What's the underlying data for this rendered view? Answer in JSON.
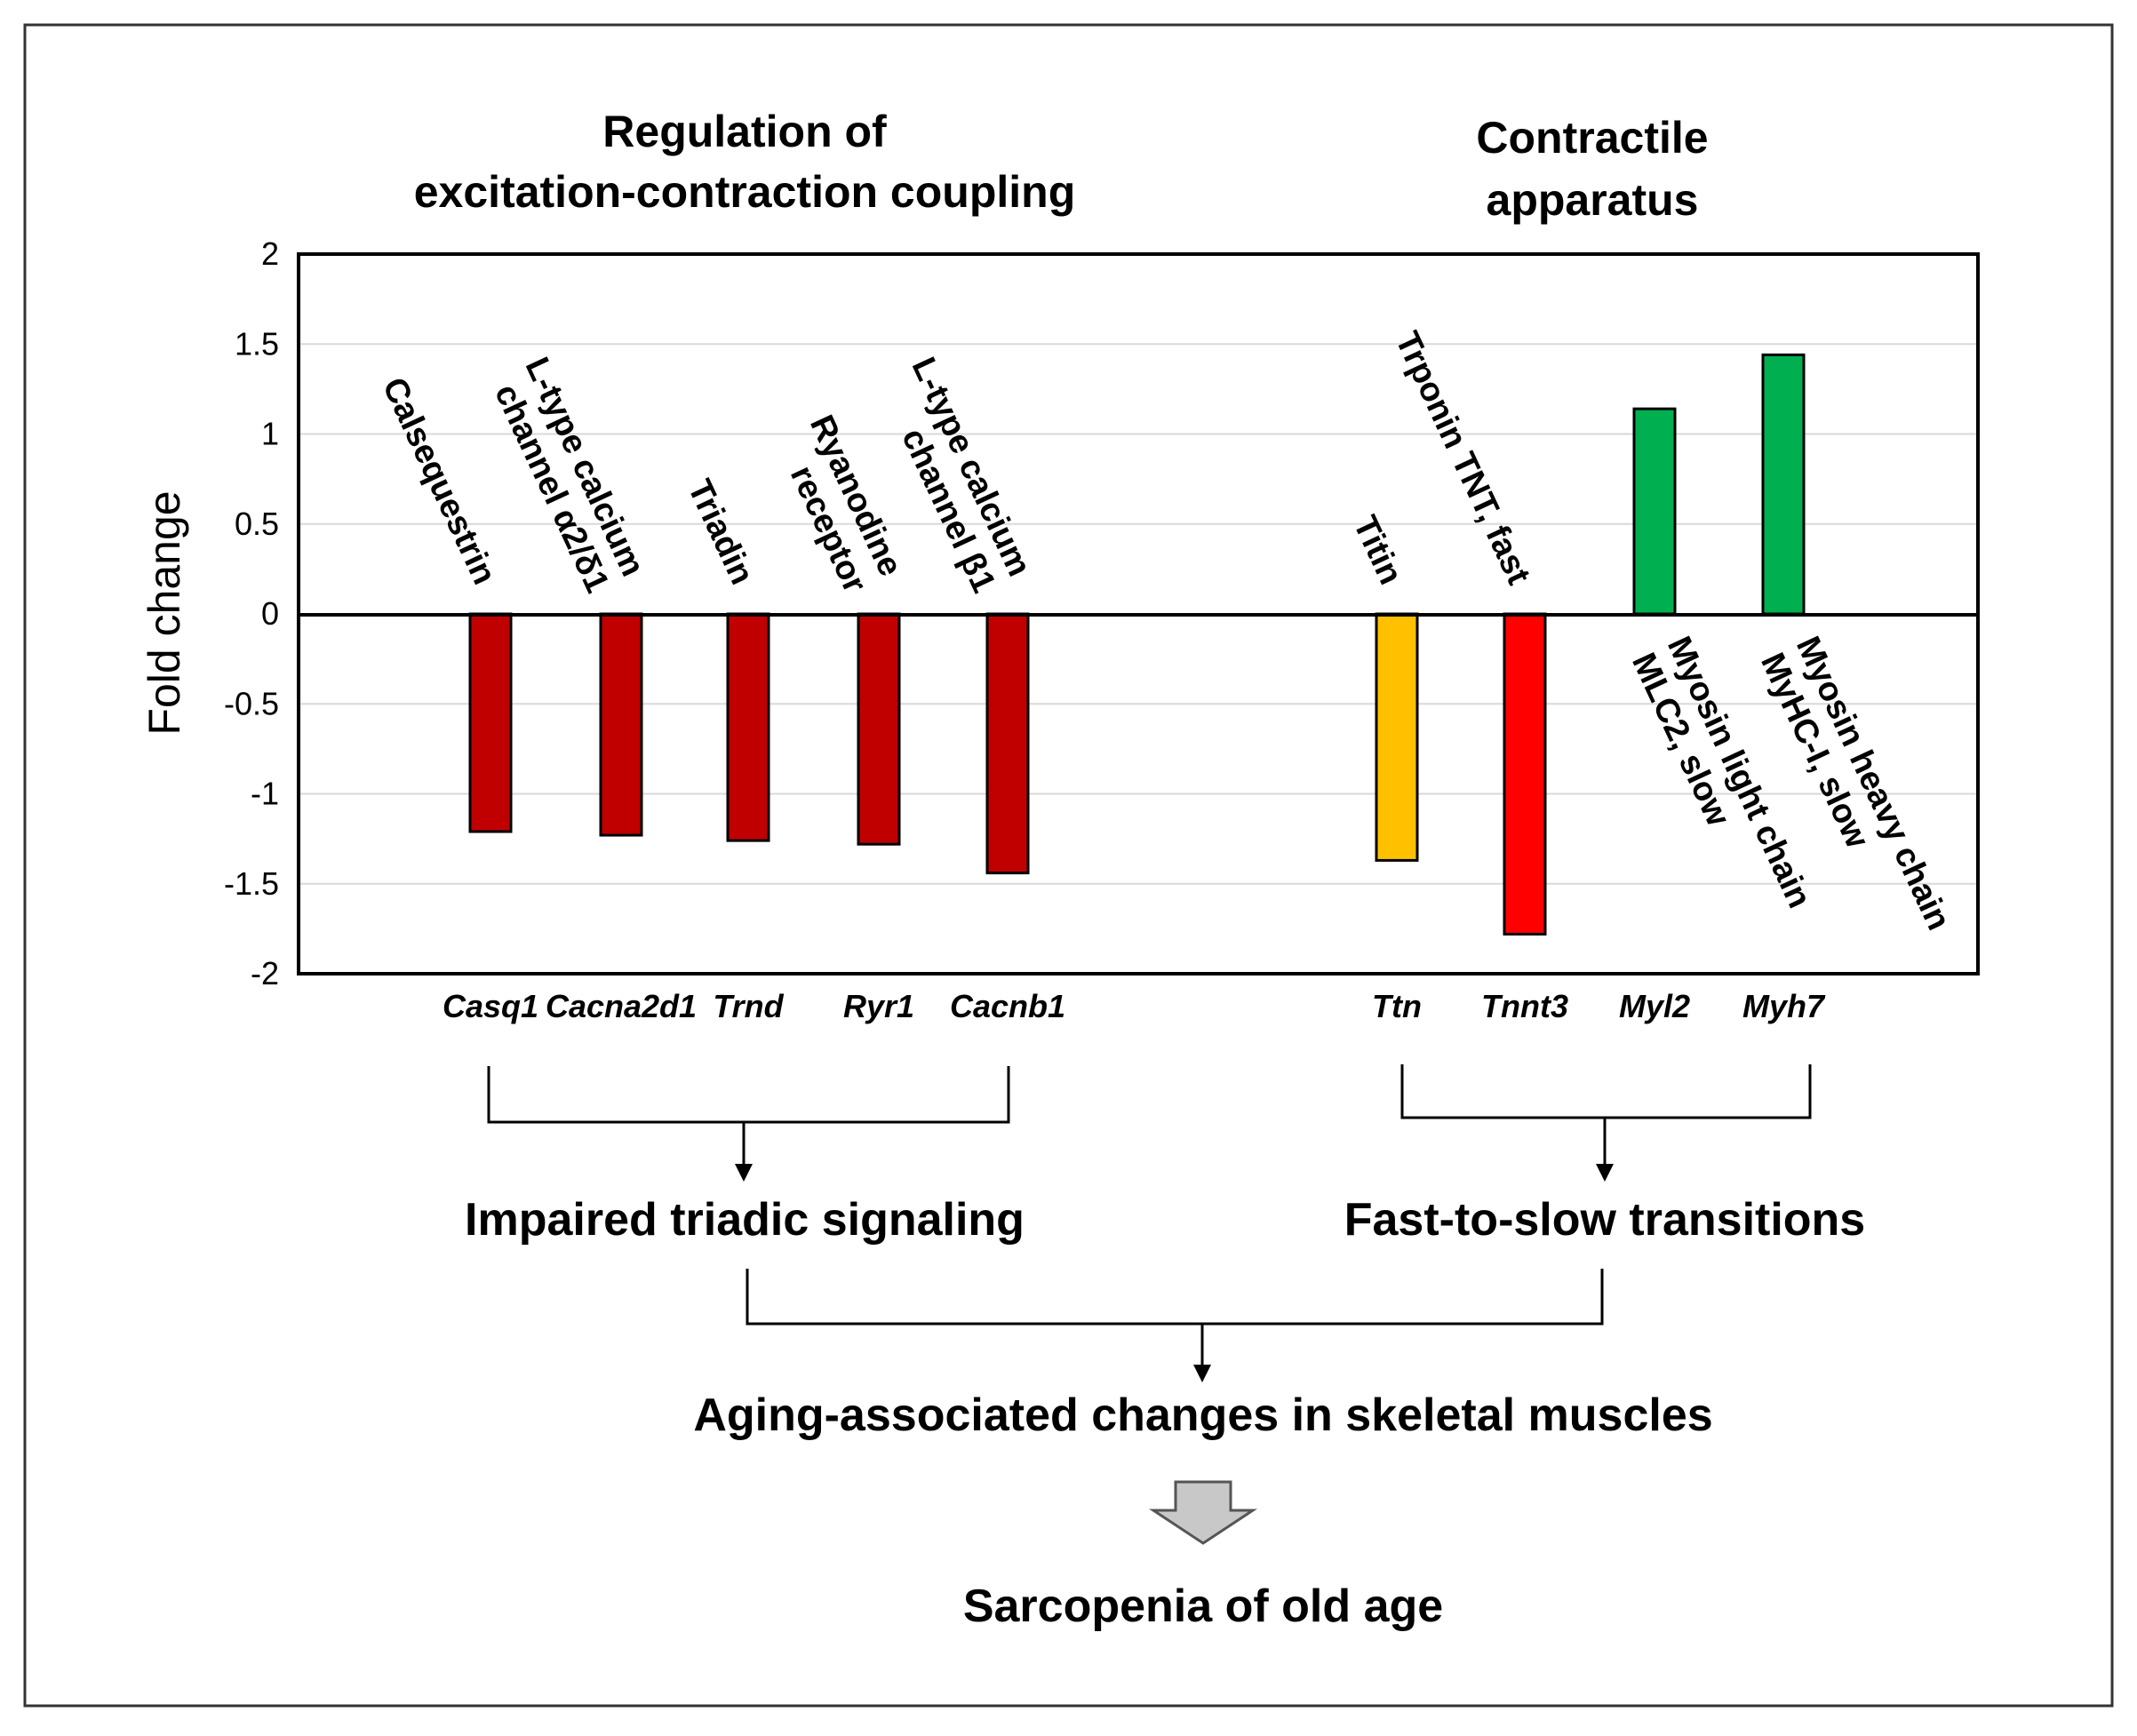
{
  "panel_titles": {
    "left": [
      "Regulation of",
      "excitation-contraction coupling"
    ],
    "right": [
      "Contractile",
      "apparatus"
    ]
  },
  "colors": {
    "dark_red": "#c00000",
    "red": "#ff0000",
    "amber": "#ffc000",
    "green": "#00b050",
    "conclusion_blue": "#1a3cff"
  },
  "chart_data": {
    "type": "bar",
    "ylabel": "Fold change",
    "xlabel": "",
    "ylim": [
      -2,
      2
    ],
    "yticks": [
      2,
      1.5,
      1,
      0.5,
      0,
      -0.5,
      -1,
      -1.5,
      -2
    ],
    "categories": [
      "Casq1",
      "Cacna2d1",
      "Trnd",
      "Ryr1",
      "Cacnb1",
      "Ttn",
      "Tnnt3",
      "Myl2",
      "Myh7"
    ],
    "values": [
      -1.21,
      -1.23,
      -1.26,
      -1.28,
      -1.44,
      -1.37,
      -1.78,
      1.14,
      1.44
    ],
    "protein_labels": [
      [
        "Calsequestrin"
      ],
      [
        "L-type calcium",
        "channel α2/δ1"
      ],
      [
        "Triadin"
      ],
      [
        "Ryanodine",
        "receptor"
      ],
      [
        "L-type calcium",
        "channel β1"
      ],
      [
        "Titin"
      ],
      [
        "Trponin TNT, fast"
      ],
      [
        "Myosin light chain",
        "MLC2, slow"
      ],
      [
        "Myosin heavy chain",
        "MyHC-I, slow"
      ]
    ],
    "bar_colors": [
      "#c00000",
      "#c00000",
      "#c00000",
      "#c00000",
      "#c00000",
      "#ffc000",
      "#ff0000",
      "#00b050",
      "#00b050"
    ],
    "grid": true
  },
  "flow": {
    "left_outcome": "Impaired triadic signaling",
    "right_outcome": "Fast-to-slow transitions",
    "combined_outcome": "Aging-associated changes in skeletal muscles",
    "conclusion": "Sarcopenia of old age"
  }
}
